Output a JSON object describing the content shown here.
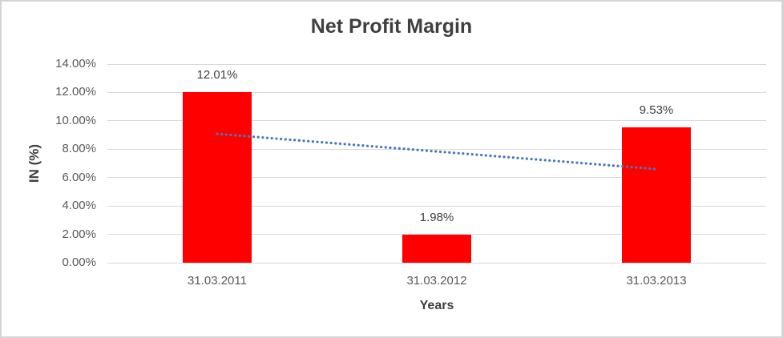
{
  "chart_data": {
    "type": "bar",
    "title": "Net Profit Margin",
    "xlabel": "Years",
    "ylabel": "IN (%)",
    "categories": [
      "31.03.2011",
      "31.03.2012",
      "31.03.2013"
    ],
    "values": [
      12.01,
      1.98,
      9.53
    ],
    "data_labels": [
      "12.01%",
      "1.98%",
      "9.53%"
    ],
    "unit": "%",
    "ylim": [
      0,
      14
    ],
    "y_ticks": [
      0,
      2,
      4,
      6,
      8,
      10,
      12,
      14
    ],
    "y_tick_labels": [
      "0.00%",
      "2.00%",
      "4.00%",
      "6.00%",
      "8.00%",
      "10.00%",
      "12.00%",
      "14.00%"
    ],
    "grid": true,
    "legend": "none",
    "bar_color": "#ff0000",
    "gridline_color": "#d9d9d9",
    "trendline": {
      "type": "linear",
      "style": "dotted",
      "color": "#4878be",
      "start_value": 9.08,
      "end_value": 6.6
    }
  }
}
